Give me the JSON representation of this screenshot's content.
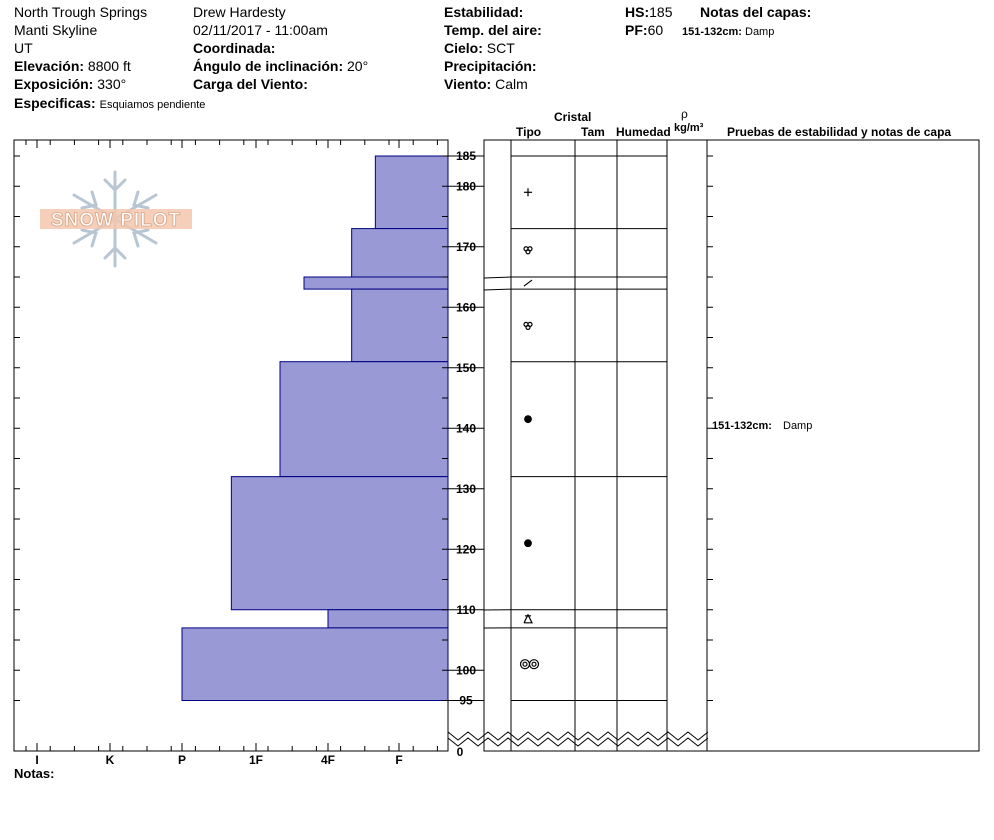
{
  "header": {
    "location": "North Trough Springs",
    "range": "Manti Skyline",
    "state": "UT",
    "elevation_label": "Elevación:",
    "elevation_value": "8800 ft",
    "aspect_label": "Exposición:",
    "aspect_value": "330°",
    "specifics_label": "Especificas:",
    "specifics_value": "Esquiamos pendiente",
    "observer": "Drew Hardesty",
    "datetime": "02/11/2017 - 11:00am",
    "coord_label": "Coordinada:",
    "slope_label": "Ángulo de inclinación:",
    "slope_value": "20°",
    "wind_load_label": "Carga del Viento:",
    "stability_label": "Estabilidad:",
    "air_temp_label": "Temp. del aire:",
    "sky_label": "Cielo:",
    "sky_value": "SCT",
    "precip_label": "Precipitación:",
    "wind_label": "Viento:",
    "wind_value": "Calm",
    "hs_label": "HS:",
    "hs_value": "185",
    "pf_label": "PF:",
    "pf_value": "60",
    "layer_notes_label": "Notas del capas:",
    "layer_note_range": "151-132cm:",
    "layer_note_text": "Damp"
  },
  "columns": {
    "crystal": "Cristal",
    "type": "Tipo",
    "size": "Tam",
    "moisture": "Humedad",
    "rho": "ρ",
    "density_unit": "kg/m³",
    "tests": "Pruebas de estabilidad y notas de capa"
  },
  "logo": "SNOW PILOT",
  "footer": {
    "notes_label": "Notas:"
  },
  "chart_data": {
    "type": "bar",
    "orientation": "horizontal",
    "y_axis": {
      "label": "",
      "range": [
        0,
        185
      ],
      "ticks": [
        100,
        110,
        120,
        130,
        140,
        150,
        160,
        170,
        180
      ],
      "top_label": 185,
      "bottom_label": 95,
      "break_label": 0
    },
    "x_axis": {
      "categories": [
        "I",
        "K",
        "P",
        "1F",
        "4F",
        "F"
      ],
      "direction": "reversed"
    },
    "hardness_profile": [
      {
        "top": 185,
        "bottom": 173,
        "hardness": "F+"
      },
      {
        "top": 173,
        "bottom": 165,
        "hardness": "4F-"
      },
      {
        "top": 165,
        "bottom": 163,
        "hardness": "4F+"
      },
      {
        "top": 163,
        "bottom": 151,
        "hardness": "4F-"
      },
      {
        "top": 151,
        "bottom": 132,
        "hardness": "1F-"
      },
      {
        "top": 132,
        "bottom": 110,
        "hardness": "1F+"
      },
      {
        "top": 110,
        "bottom": 107,
        "hardness": "4F"
      },
      {
        "top": 107,
        "bottom": 95,
        "hardness": "P"
      }
    ],
    "layer_boundaries": [
      185,
      173,
      165,
      163,
      151,
      132,
      110,
      107,
      95
    ],
    "layers": [
      {
        "center": 179,
        "grain": "precipitation-particles"
      },
      {
        "center": 169.5,
        "grain": "decomposing-fragments"
      },
      {
        "center": 164,
        "grain": "decomposing-fragments-slash"
      },
      {
        "center": 157,
        "grain": "decomposing-fragments"
      },
      {
        "center": 141.5,
        "grain": "rounded-grains"
      },
      {
        "center": 121,
        "grain": "rounded-grains"
      },
      {
        "center": 108.5,
        "grain": "depth-hoar"
      },
      {
        "center": 101,
        "grain": "melt-forms"
      }
    ],
    "bar_color": "#9999d6",
    "bar_edge_color": "#000080"
  }
}
